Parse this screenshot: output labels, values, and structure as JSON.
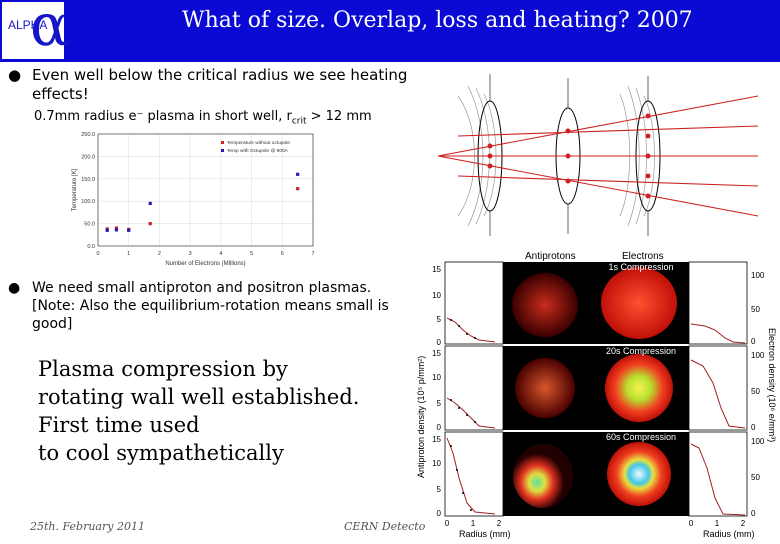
{
  "header": {
    "logo_text": "ALPHA",
    "logo_symbol": "α",
    "title": "What of size. Overlap, loss and heating? 2007"
  },
  "bullets": {
    "b1_line1": "Even well below the critical radius we see heating",
    "b1_line2": "effects!",
    "b1_sub": "0.7mm radius e⁻ plasma in short well, r",
    "b1_sub_sub": "crit",
    "b1_sub_end": " > 12 mm",
    "b2_line1": "We need small antiproton and positron plasmas.",
    "b2_line2": "[Note: Also the equilibrium-rotation means small is good]"
  },
  "plasma_text": {
    "l1": "Plasma compression by",
    "l2": "rotating wall well established.",
    "l3": "First time used",
    "l4": "to cool sympathetically"
  },
  "footer": {
    "date": "25th. February 2011",
    "venue": "CERN Detecto"
  },
  "figure_labels": {
    "antiprotons": "Antiprotons",
    "electrons": "Electrons",
    "comp1": "1s Compression",
    "comp2": "20s Compression",
    "comp3": "60s Compression",
    "y_left": "Antiproton density (10⁵ p/mm²)",
    "y_right": "Electron density (10⁶ e/mm³)",
    "x_label": "Radius (mm)"
  },
  "chart_data": {
    "type": "scatter",
    "xlabel": "Number of Electrons (Millions)",
    "ylabel": "Temperature [K]",
    "xlim": [
      0,
      7
    ],
    "ylim": [
      0,
      250
    ],
    "x_ticks": [
      "0",
      "1",
      "2",
      "3",
      "4",
      "5",
      "6",
      "7"
    ],
    "y_ticks": [
      "0.0",
      "50.0",
      "100.0",
      "150.0",
      "200.0",
      "250.0"
    ],
    "legend_placement": "top-right",
    "series": [
      {
        "name": "Temperature without octupole",
        "color": "#d02020",
        "x": [
          0.3,
          0.6,
          1.0,
          1.7,
          6.5
        ],
        "y": [
          38,
          40,
          37,
          50,
          128
        ]
      },
      {
        "name": "Temp with Octupole @ 900A",
        "color": "#2020b0",
        "x": [
          0.3,
          0.6,
          1.0,
          1.7,
          6.5
        ],
        "y": [
          35,
          36,
          35,
          95,
          160
        ]
      }
    ]
  }
}
